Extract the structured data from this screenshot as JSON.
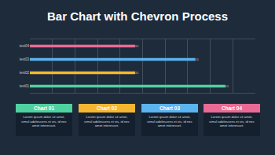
{
  "chart_data": {
    "type": "bar",
    "title": "Bar Chart with Chevron Process",
    "orientation": "horizontal",
    "categories": [
      "text01",
      "text02",
      "text03",
      "text04"
    ],
    "values": [
      6.5,
      3.5,
      5.5,
      3.5
    ],
    "colors": [
      "#4fd1a1",
      "#f5b731",
      "#5bb3ef",
      "#e96a94"
    ],
    "xlim": [
      0,
      7.5
    ],
    "xticks": [
      0,
      0.75,
      1.5,
      2.25,
      3,
      3.75,
      4.5,
      5.25,
      6,
      6.75,
      7.5
    ],
    "grid": true,
    "data_labels": true,
    "tick_labels": "y"
  },
  "cards": [
    {
      "title": "Chart 01",
      "color": "#4fd1a1",
      "text": "Lorem ipsum dolor sit amet, simul adolescens ei vis, id nec amet interesset."
    },
    {
      "title": "Chart 02",
      "color": "#f5b731",
      "text": "Lorem ipsum dolor sit amet, simul adolescens ei vis, id nec amet interesset."
    },
    {
      "title": "Chart 03",
      "color": "#5bb3ef",
      "text": "Lorem ipsum dolor sit amet, simul adolescens ei vis, id nec amet interesset."
    },
    {
      "title": "Chart 04",
      "color": "#e96a94",
      "text": "Lorem ipsum dolor sit amet, simul adolescens ei vis, id nec amet interesset."
    }
  ]
}
